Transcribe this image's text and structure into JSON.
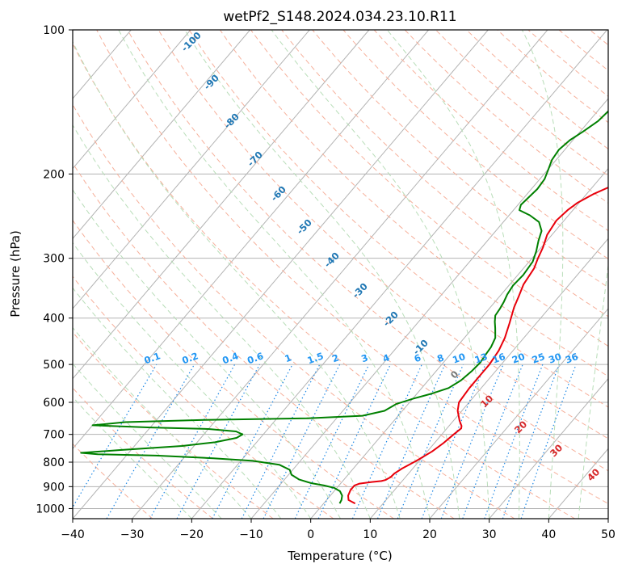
{
  "chart_data": {
    "type": "line",
    "subtype": "skew-t log-p",
    "title": "wetPf2_S148.2024.034.23.10.R11",
    "xlabel": "Temperature (°C)",
    "ylabel": "Pressure (hPa)",
    "xlim": [
      -40,
      50
    ],
    "ylim": [
      1050,
      100
    ],
    "y_scale": "log",
    "grid": true,
    "x_ticks": [
      "−40",
      "−30",
      "−20",
      "−10",
      "0",
      "10",
      "20",
      "30",
      "40",
      "50"
    ],
    "y_ticks": [
      "100",
      "200",
      "300",
      "400",
      "500",
      "600",
      "700",
      "800",
      "900",
      "1000"
    ],
    "series": [
      {
        "color": "#e8000b",
        "points": [
          [
            5.3,
            976
          ],
          [
            3.7,
            960
          ],
          [
            3.0,
            940
          ],
          [
            2.6,
            915
          ],
          [
            2.6,
            895
          ],
          [
            3.2,
            887
          ],
          [
            5.0,
            880
          ],
          [
            6.5,
            876
          ],
          [
            7.0,
            872
          ],
          [
            7.5,
            860
          ],
          [
            7.6,
            845
          ],
          [
            8.2,
            825
          ],
          [
            9.5,
            795
          ],
          [
            10.8,
            760
          ],
          [
            11.5,
            730
          ],
          [
            12.0,
            700
          ],
          [
            12.4,
            680
          ],
          [
            12.1,
            672
          ],
          [
            11.0,
            655
          ],
          [
            9.3,
            625
          ],
          [
            8.3,
            600
          ],
          [
            8.0,
            560
          ],
          [
            8.0,
            530
          ],
          [
            8.0,
            500
          ],
          [
            7.6,
            468
          ],
          [
            6.8,
            440
          ],
          [
            5.5,
            410
          ],
          [
            4.0,
            380
          ],
          [
            3.2,
            360
          ],
          [
            2.3,
            340
          ],
          [
            1.8,
            315
          ],
          [
            1.0,
            300
          ],
          [
            0.3,
            285
          ],
          [
            -0.8,
            268
          ],
          [
            -1.3,
            250
          ],
          [
            -0.9,
            238
          ],
          [
            -0.3,
            230
          ],
          [
            1.2,
            220
          ],
          [
            3.5,
            210
          ],
          [
            6.5,
            200
          ],
          [
            9.5,
            190
          ],
          [
            12.0,
            180
          ],
          [
            14.0,
            172
          ],
          [
            16.0,
            164
          ],
          [
            17.5,
            155
          ],
          [
            18.6,
            148
          ],
          [
            19.2,
            142
          ],
          [
            20.2,
            136
          ],
          [
            21.0,
            130
          ],
          [
            21.8,
            125
          ],
          [
            22.5,
            118
          ],
          [
            23.6,
            112
          ],
          [
            24.2,
            106
          ],
          [
            25.6,
            100
          ]
        ]
      },
      {
        "color": "#008000",
        "points": [
          [
            2.7,
            976
          ],
          [
            2.5,
            960
          ],
          [
            2.0,
            940
          ],
          [
            1.0,
            920
          ],
          [
            -0.5,
            905
          ],
          [
            -2.5,
            895
          ],
          [
            -5.0,
            885
          ],
          [
            -7.5,
            870
          ],
          [
            -9.5,
            850
          ],
          [
            -10.5,
            830
          ],
          [
            -13.0,
            810
          ],
          [
            -18.0,
            795
          ],
          [
            -25.0,
            785
          ],
          [
            -35.0,
            775
          ],
          [
            -45.0,
            770
          ],
          [
            -48.0,
            765
          ],
          [
            -42.0,
            755
          ],
          [
            -32.0,
            740
          ],
          [
            -27.0,
            727
          ],
          [
            -24.0,
            712
          ],
          [
            -23.5,
            700
          ],
          [
            -25.0,
            690
          ],
          [
            -30.0,
            682
          ],
          [
            -40.0,
            677
          ],
          [
            -50.0,
            670
          ],
          [
            -45.0,
            660
          ],
          [
            -32.0,
            653
          ],
          [
            -15.0,
            648
          ],
          [
            -6.0,
            640
          ],
          [
            -3.0,
            625
          ],
          [
            -2.0,
            605
          ],
          [
            0.0,
            590
          ],
          [
            2.5,
            575
          ],
          [
            4.5,
            560
          ],
          [
            5.5,
            540
          ],
          [
            6.0,
            515
          ],
          [
            6.2,
            495
          ],
          [
            6.0,
            480
          ],
          [
            5.8,
            460
          ],
          [
            5.2,
            440
          ],
          [
            3.8,
            420
          ],
          [
            2.8,
            407
          ],
          [
            2.0,
            395
          ],
          [
            1.8,
            382
          ],
          [
            1.5,
            370
          ],
          [
            1.0,
            357
          ],
          [
            0.7,
            342
          ],
          [
            0.9,
            325
          ],
          [
            0.6,
            305
          ],
          [
            -0.3,
            290
          ],
          [
            -1.4,
            276
          ],
          [
            -2.3,
            263
          ],
          [
            -4.0,
            252
          ],
          [
            -6.5,
            244
          ],
          [
            -9.0,
            238
          ],
          [
            -9.5,
            232
          ],
          [
            -9.3,
            225
          ],
          [
            -9.0,
            215
          ],
          [
            -9.2,
            205
          ],
          [
            -10.0,
            195
          ],
          [
            -10.7,
            187
          ],
          [
            -11.0,
            178
          ],
          [
            -10.5,
            170
          ],
          [
            -9.5,
            163
          ],
          [
            -8.5,
            155
          ],
          [
            -8.2,
            148
          ],
          [
            -7.8,
            140
          ],
          [
            -7.5,
            133
          ],
          [
            -7.2,
            126
          ],
          [
            -6.8,
            120
          ],
          [
            -6.2,
            114
          ],
          [
            -5.3,
            108
          ],
          [
            -4.3,
            103
          ],
          [
            -3.8,
            100
          ]
        ]
      }
    ],
    "dry_adiabat_labels": [
      "-100",
      "-90",
      "-80",
      "-70",
      "-60",
      "-50",
      "-40",
      "-30",
      "-20",
      "-10",
      "0",
      "10",
      "20",
      "30",
      "40"
    ],
    "mixing_ratio_labels": [
      "0.1",
      "0.2",
      "0.4",
      "0.6",
      "1",
      "1.5",
      "2",
      "3",
      "4",
      "6",
      "8",
      "10",
      "13",
      "16",
      "20",
      "25",
      "30",
      "36"
    ],
    "mixing_ratio_values": [
      0.1,
      0.2,
      0.4,
      0.6,
      1,
      1.5,
      2,
      3,
      4,
      6,
      8,
      10,
      13,
      16,
      20,
      25,
      30,
      36
    ],
    "colors": {
      "isotherm": "#b3b3b3",
      "isobar": "#b3b3b3",
      "dry_adiabat": "#f6b09b",
      "moist_adiabat": "#b8ddb8",
      "mixing_ratio": "#1e88e5",
      "label_blue": "#1f77b4",
      "label_red": "#d62728",
      "label_gray": "#777777",
      "mixing_label": "#2196f3",
      "skew_curve": "#e0c9a8"
    }
  }
}
